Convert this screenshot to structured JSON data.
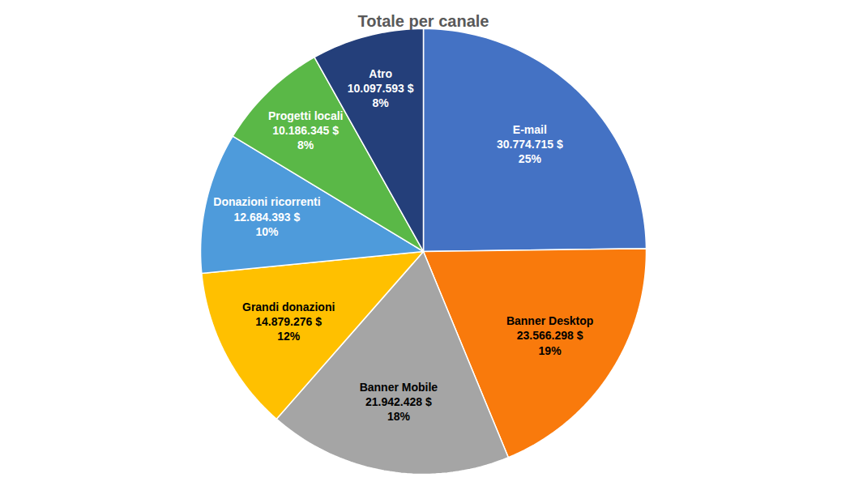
{
  "chart_data": {
    "type": "pie",
    "title": "Totale per canale",
    "categories": [
      "E-mail",
      "Banner Desktop",
      "Banner Mobile",
      "Grandi donazioni",
      "Donazioni ricorrenti",
      "Progetti locali",
      "Atro"
    ],
    "values": [
      30774715,
      23566298,
      21942428,
      14879276,
      12684393,
      10186345,
      10097593
    ],
    "value_labels": [
      "30.774.715 $",
      "23.566.298 $",
      "21.942.428 $",
      "14.879.276 $",
      "12.684.393 $",
      "10.186.345 $",
      "10.097.593 $"
    ],
    "percent_labels": [
      "25%",
      "19%",
      "18%",
      "12%",
      "10%",
      "8%",
      "8%"
    ],
    "colors": [
      "#4472C4",
      "#F97A0C",
      "#A5A5A5",
      "#FFC000",
      "#4E9BDB",
      "#5AB847",
      "#243F7A"
    ],
    "data_labels": true
  }
}
